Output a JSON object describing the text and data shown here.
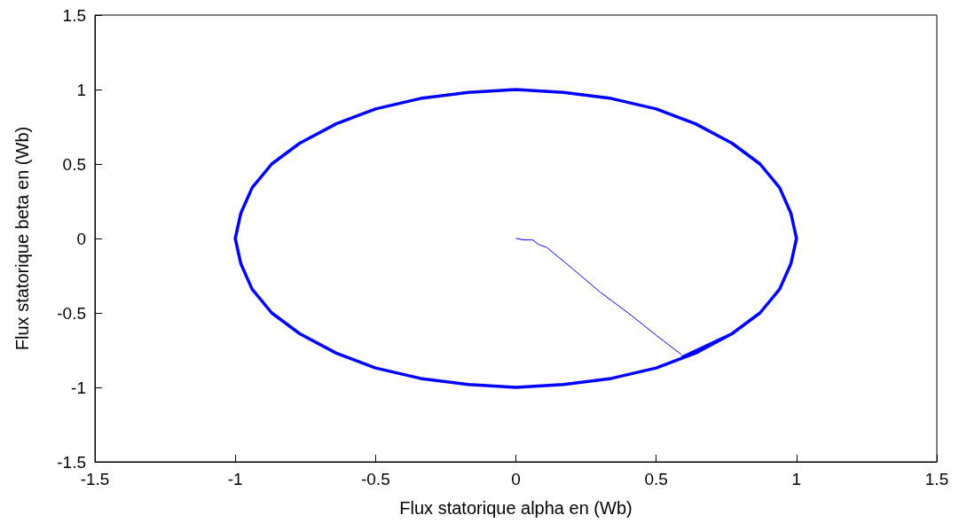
{
  "chart_data": {
    "type": "line",
    "xlabel": "Flux statorique alpha en (Wb)",
    "ylabel": "Flux statorique beta en (Wb)",
    "xlim": [
      -1.5,
      1.5
    ],
    "xticks": [
      -1.5,
      -1,
      -0.5,
      0,
      0.5,
      1,
      1.5
    ],
    "ylim": [
      -1.5,
      1.5
    ],
    "yticks": [
      -1.5,
      -1,
      -0.5,
      0,
      0.5,
      1,
      1.5
    ],
    "grid": false,
    "marker": "none",
    "line_style": "solid",
    "series": [
      {
        "color": "#0000ff",
        "x": [
          0,
          0.03,
          0.06,
          0.08,
          0.11,
          0.2,
          0.3,
          0.4,
          0.5,
          0.59
        ],
        "values": [
          0,
          -0.01,
          -0.01,
          -0.04,
          -0.06,
          -0.2,
          -0.36,
          -0.5,
          -0.65,
          -0.78
        ]
      },
      {
        "color": "#0000ff",
        "x": [
          0.59,
          0.77,
          0.87,
          0.94,
          0.98,
          1,
          0.98,
          0.94,
          0.87,
          0.77,
          0.64,
          0.5,
          0.34,
          0.17,
          0,
          -0.17,
          -0.34,
          -0.5,
          -0.64,
          -0.77,
          -0.87,
          -0.94,
          -0.98,
          -1,
          -0.98,
          -0.94,
          -0.87,
          -0.77,
          -0.64,
          -0.5,
          -0.34,
          -0.17,
          0,
          0.17,
          0.34,
          0.5,
          0.64,
          0.77
        ],
        "values": [
          -0.8,
          -0.64,
          -0.5,
          -0.34,
          -0.17,
          0,
          0.17,
          0.34,
          0.5,
          0.64,
          0.77,
          0.87,
          0.94,
          0.98,
          1,
          0.98,
          0.94,
          0.87,
          0.77,
          0.64,
          0.5,
          0.34,
          0.17,
          0,
          -0.17,
          -0.34,
          -0.5,
          -0.64,
          -0.77,
          -0.87,
          -0.94,
          -0.98,
          -1,
          -0.98,
          -0.94,
          -0.87,
          -0.77,
          -0.64
        ]
      }
    ]
  }
}
